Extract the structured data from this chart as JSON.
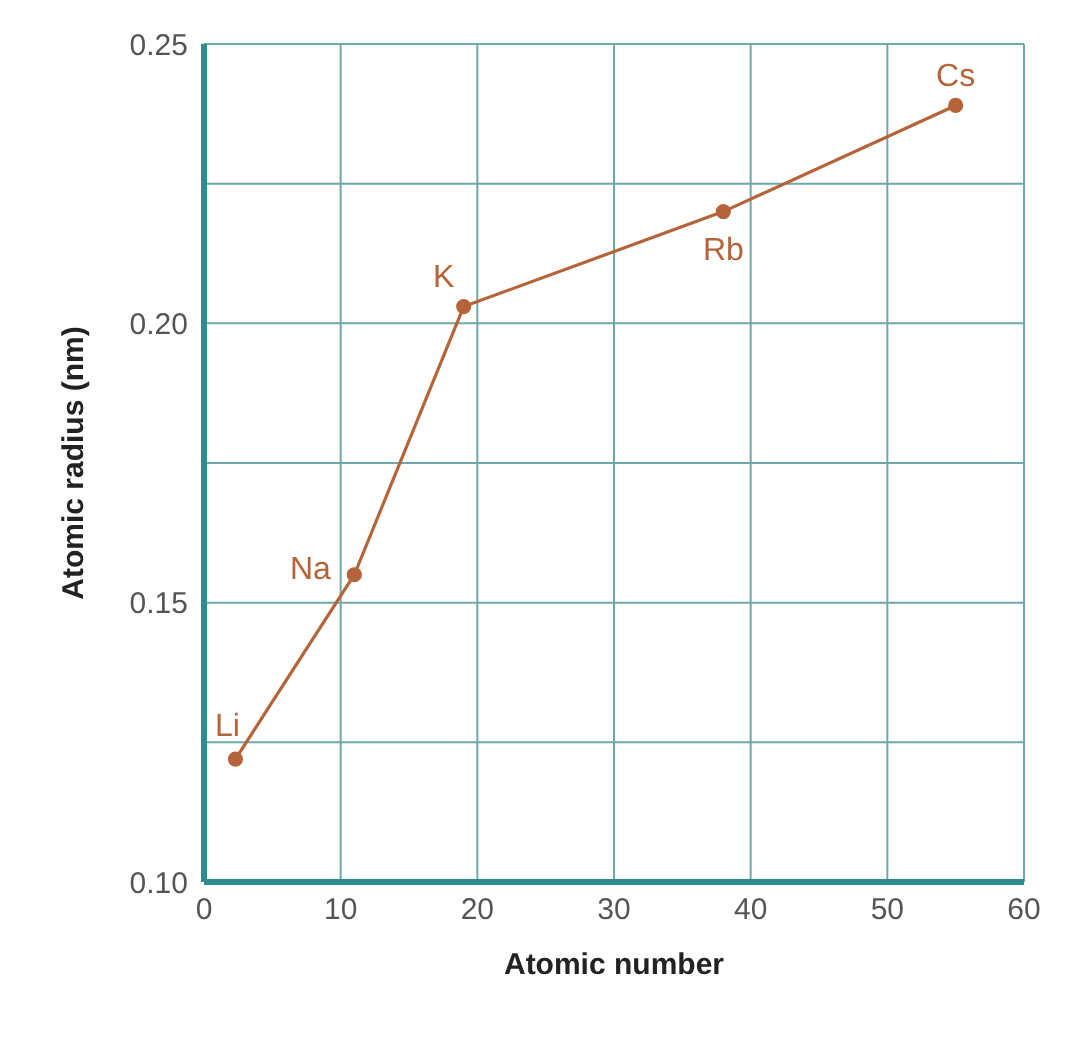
{
  "chart_data": {
    "type": "line",
    "xlabel": "Atomic number",
    "ylabel": "Atomic radius (nm)",
    "x": [
      2.3,
      11,
      19,
      38,
      55
    ],
    "series": [
      {
        "color": "#b5643a",
        "values": [
          0.122,
          0.155,
          0.203,
          0.22,
          0.239
        ]
      }
    ],
    "xlim": [
      0,
      60
    ],
    "xticks": [
      0,
      10,
      20,
      30,
      40,
      50,
      60
    ],
    "ylim": [
      0.1,
      0.25
    ],
    "yticks": [
      {
        "value": 0.1,
        "label": "0.10"
      },
      {
        "value": 0.125,
        "label": null
      },
      {
        "value": 0.15,
        "label": "0.15"
      },
      {
        "value": 0.175,
        "label": null
      },
      {
        "value": 0.2,
        "label": "0.20"
      },
      {
        "value": 0.225,
        "label": null
      },
      {
        "value": 0.25,
        "label": "0.25"
      }
    ],
    "grid": true,
    "marker": "circle",
    "line_style": "solid",
    "annotations": [
      {
        "text": "Li",
        "x": 2.3,
        "y": 0.122
      },
      {
        "text": "Na",
        "x": 11,
        "y": 0.155
      },
      {
        "text": "K",
        "x": 19,
        "y": 0.203
      },
      {
        "text": "Rb",
        "x": 38,
        "y": 0.22
      },
      {
        "text": "Cs",
        "x": 55,
        "y": 0.239
      }
    ]
  }
}
